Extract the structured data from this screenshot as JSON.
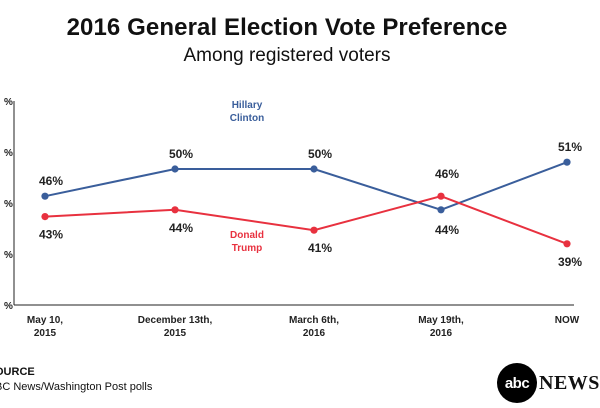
{
  "title": "2016 General Election Vote Preference",
  "subtitle": "Among registered voters",
  "chart_data": {
    "type": "line",
    "categories": [
      {
        "line1": "May 10,",
        "line2": "2015"
      },
      {
        "line1": "December 13th,",
        "line2": "2015"
      },
      {
        "line1": "March 6th,",
        "line2": "2016"
      },
      {
        "line1": "May 19th,",
        "line2": "2016"
      },
      {
        "line1": "NOW",
        "line2": ""
      }
    ],
    "series": [
      {
        "name_line1": "Hillary",
        "name_line2": "Clinton",
        "color": "#3a5e9b",
        "values": [
          46,
          50,
          50,
          44,
          51
        ],
        "labels": [
          "46%",
          "50%",
          "50%",
          "44%",
          "51%"
        ]
      },
      {
        "name_line1": "Donald",
        "name_line2": "Trump",
        "color": "#e8313f",
        "values": [
          43,
          44,
          41,
          46,
          39
        ],
        "labels": [
          "43%",
          "44%",
          "41%",
          "46%",
          "39%"
        ]
      }
    ],
    "y_ticks": [
      "%",
      "%",
      "%",
      "%",
      "%"
    ],
    "ylim": [
      30,
      60
    ],
    "grid": false
  },
  "source": {
    "heading": "OURCE",
    "text": "BC News/Washington Post polls"
  },
  "logo": {
    "circle_text": "abc",
    "word": "NEWS"
  }
}
